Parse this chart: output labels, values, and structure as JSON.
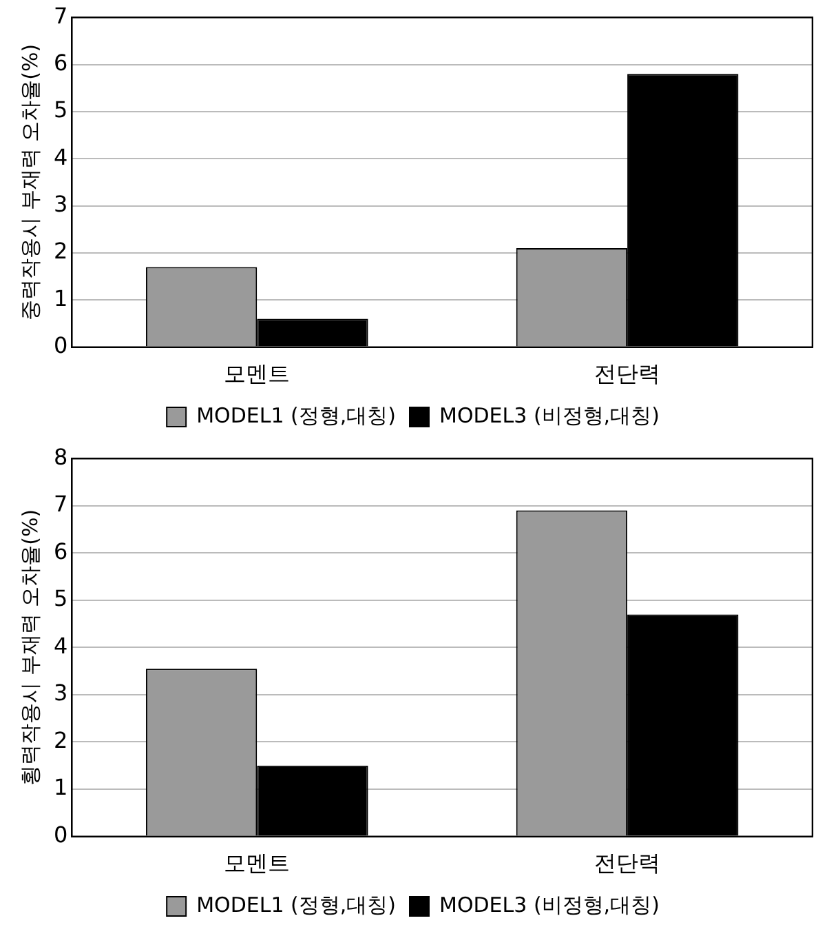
{
  "chart_data": [
    {
      "type": "bar",
      "ylabel": "중력작용시 부재력 오차율(%)",
      "categories": [
        "모멘트",
        "전단력"
      ],
      "series": [
        {
          "name": "MODEL1 (정형,대칭)",
          "color": "#9a9a9a",
          "values": [
            1.7,
            2.1
          ]
        },
        {
          "name": "MODEL3 (비정형,대칭)",
          "color": "#000000",
          "values": [
            0.6,
            5.8
          ]
        }
      ],
      "ylim": [
        0,
        7
      ],
      "yticks": [
        0,
        1,
        2,
        3,
        4,
        5,
        6,
        7
      ],
      "grid": "y",
      "legend": "bottom"
    },
    {
      "type": "bar",
      "ylabel": "횡력작용시 부재력 오차율(%)",
      "categories": [
        "모멘트",
        "전단력"
      ],
      "series": [
        {
          "name": "MODEL1 (정형,대칭)",
          "color": "#9a9a9a",
          "values": [
            3.55,
            6.9
          ]
        },
        {
          "name": "MODEL3 (비정형,대칭)",
          "color": "#000000",
          "values": [
            1.5,
            4.7
          ]
        }
      ],
      "ylim": [
        0,
        8
      ],
      "yticks": [
        0,
        1,
        2,
        3,
        4,
        5,
        6,
        7,
        8
      ],
      "grid": "y",
      "legend": "bottom"
    }
  ]
}
